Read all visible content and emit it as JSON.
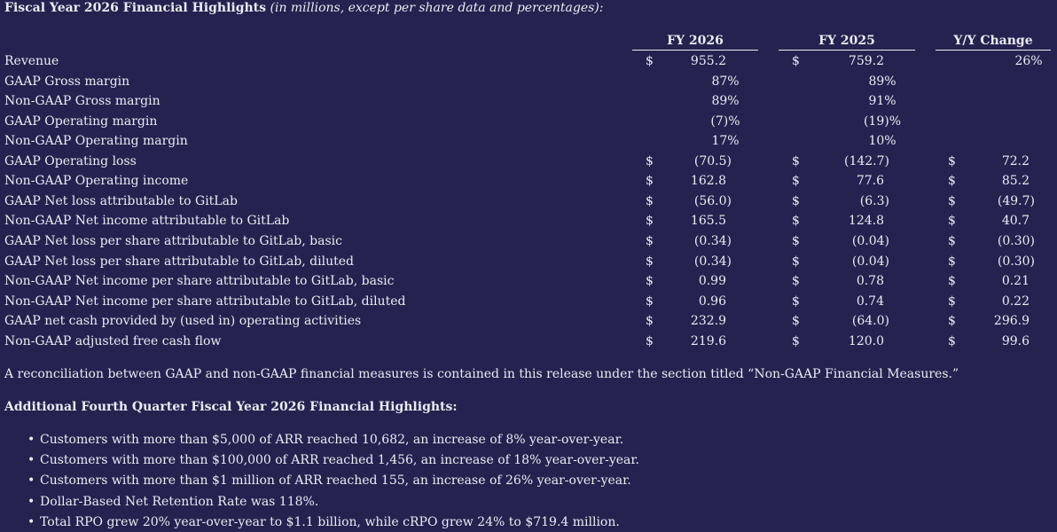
{
  "header": {
    "title": "Fiscal Year 2026 Financial Highlights",
    "subtitle": "(in millions, except per share data and percentages):"
  },
  "table": {
    "columns": [
      "FY 2026",
      "FY 2025",
      "Y/Y Change"
    ],
    "rows": [
      {
        "label": "Revenue",
        "cells": [
          {
            "currency": "$",
            "value": "955.2"
          },
          {
            "currency": "$",
            "value": "759.2"
          },
          {
            "value": "26%"
          }
        ]
      },
      {
        "label": "GAAP Gross margin",
        "cells": [
          {
            "value": "87%"
          },
          {
            "value": "89%"
          }
        ]
      },
      {
        "label": "Non-GAAP Gross margin",
        "cells": [
          {
            "value": "89%"
          },
          {
            "value": "91%"
          }
        ]
      },
      {
        "label": "GAAP Operating margin",
        "cells": [
          {
            "value": "(7)%"
          },
          {
            "value": "(19)%"
          }
        ]
      },
      {
        "label": "Non-GAAP Operating margin",
        "cells": [
          {
            "value": "17%"
          },
          {
            "value": "10%"
          }
        ]
      },
      {
        "label": "GAAP Operating loss",
        "cells": [
          {
            "currency": "$",
            "value": "(70.5)"
          },
          {
            "currency": "$",
            "value": "(142.7)"
          },
          {
            "currency": "$",
            "value": "72.2"
          }
        ]
      },
      {
        "label": "Non-GAAP Operating income",
        "cells": [
          {
            "currency": "$",
            "value": "162.8"
          },
          {
            "currency": "$",
            "value": "77.6"
          },
          {
            "currency": "$",
            "value": "85.2"
          }
        ]
      },
      {
        "label": "GAAP Net loss attributable to GitLab",
        "cells": [
          {
            "currency": "$",
            "value": "(56.0)"
          },
          {
            "currency": "$",
            "value": "(6.3)"
          },
          {
            "currency": "$",
            "value": "(49.7)"
          }
        ]
      },
      {
        "label": "Non-GAAP Net income attributable to GitLab",
        "cells": [
          {
            "currency": "$",
            "value": "165.5"
          },
          {
            "currency": "$",
            "value": "124.8"
          },
          {
            "currency": "$",
            "value": "40.7"
          }
        ]
      },
      {
        "label": "GAAP Net loss per share attributable to GitLab, basic",
        "cells": [
          {
            "currency": "$",
            "value": "(0.34)"
          },
          {
            "currency": "$",
            "value": "(0.04)"
          },
          {
            "currency": "$",
            "value": "(0.30)"
          }
        ]
      },
      {
        "label": "GAAP Net loss per share attributable to GitLab, diluted",
        "cells": [
          {
            "currency": "$",
            "value": "(0.34)"
          },
          {
            "currency": "$",
            "value": "(0.04)"
          },
          {
            "currency": "$",
            "value": "(0.30)"
          }
        ]
      },
      {
        "label": "Non-GAAP Net income per share attributable to GitLab, basic",
        "cells": [
          {
            "currency": "$",
            "value": "0.99"
          },
          {
            "currency": "$",
            "value": "0.78"
          },
          {
            "currency": "$",
            "value": "0.21"
          }
        ]
      },
      {
        "label": "Non-GAAP Net income per share attributable to GitLab, diluted",
        "cells": [
          {
            "currency": "$",
            "value": "0.96"
          },
          {
            "currency": "$",
            "value": "0.74"
          },
          {
            "currency": "$",
            "value": "0.22"
          }
        ]
      },
      {
        "label": "GAAP net cash provided by (used in) operating activities",
        "cells": [
          {
            "currency": "$",
            "value": "232.9"
          },
          {
            "currency": "$",
            "value": "(64.0)"
          },
          {
            "currency": "$",
            "value": "296.9"
          }
        ]
      },
      {
        "label": "Non-GAAP adjusted free cash flow",
        "cells": [
          {
            "currency": "$",
            "value": "219.6"
          },
          {
            "currency": "$",
            "value": "120.0"
          },
          {
            "currency": "$",
            "value": "99.6"
          }
        ]
      }
    ]
  },
  "note": "A reconciliation between GAAP and non-GAAP financial measures is contained in this release under the section titled “Non-GAAP Financial Measures.”",
  "section": {
    "title": "Additional Fourth Quarter Fiscal Year 2026 Financial Highlights:",
    "bullets": [
      "Customers with more than $5,000 of ARR reached 10,682, an increase of 8% year-over-year.",
      "Customers with more than $100,000 of ARR reached 1,456, an increase of 18% year-over-year.",
      "Customers with more than $1 million of ARR reached 155, an increase of 26% year-over-year.",
      "Dollar-Based Net Retention Rate was 118%.",
      "Total RPO grew 20% year-over-year to $1.1 billion, while cRPO grew 24% to $719.4 million."
    ]
  }
}
